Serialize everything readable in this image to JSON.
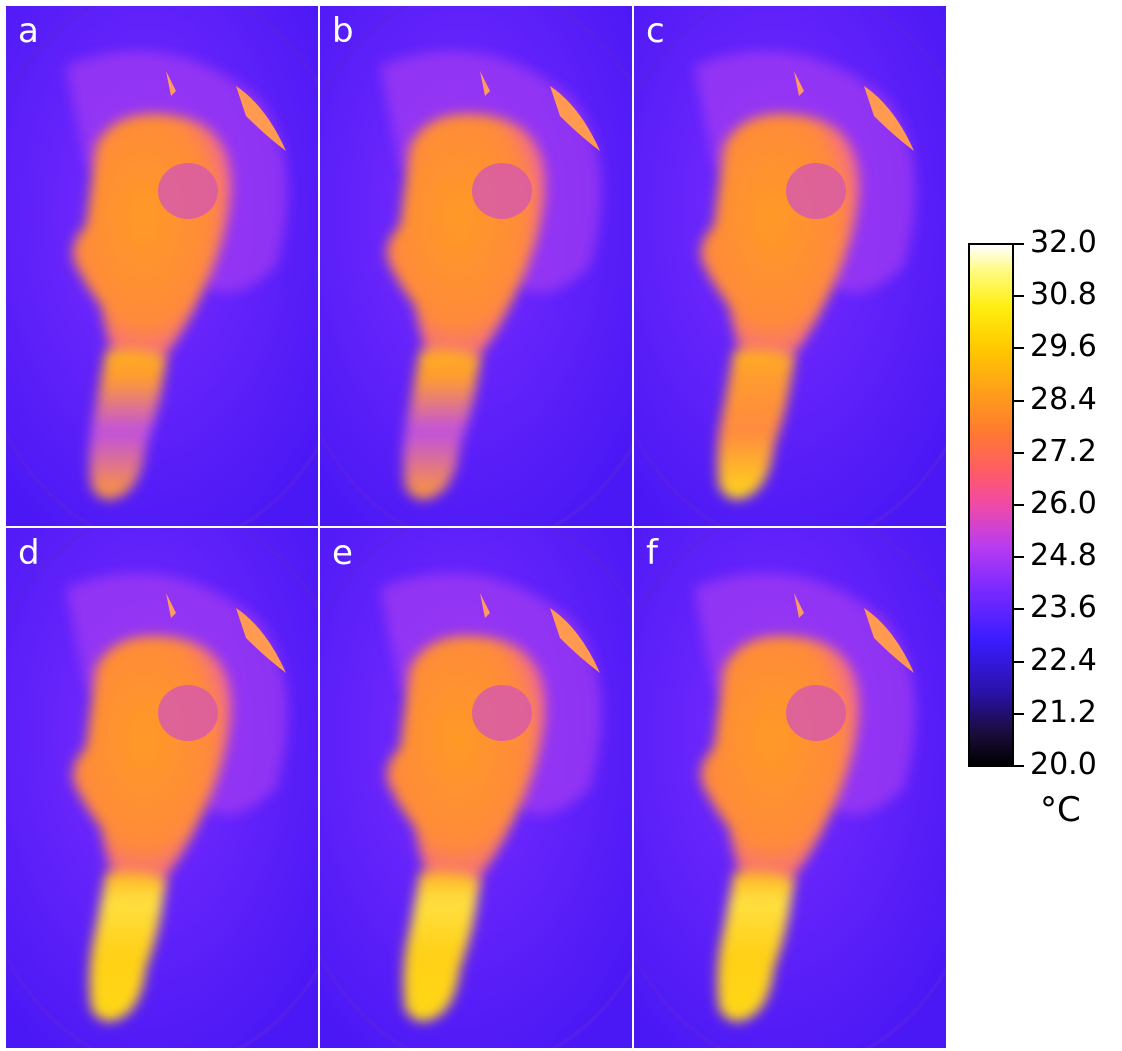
{
  "panels": [
    {
      "letter": "a",
      "stem_glow": 0.15
    },
    {
      "letter": "b",
      "stem_glow": 0.3
    },
    {
      "letter": "c",
      "stem_glow": 0.5
    },
    {
      "letter": "d",
      "stem_glow": 0.72
    },
    {
      "letter": "e",
      "stem_glow": 0.85
    },
    {
      "letter": "f",
      "stem_glow": 1.0
    }
  ],
  "colorbar": {
    "ticks": [
      "32.0",
      "30.8",
      "29.6",
      "28.4",
      "27.2",
      "26.0",
      "24.8",
      "23.6",
      "22.4",
      "21.2",
      "20.0"
    ],
    "unit": "°C",
    "colors": {
      "min": "#000000",
      "low": "#3a1cff",
      "mid": "#f04aa8",
      "high": "#ffa018",
      "max": "#ffffff"
    }
  }
}
